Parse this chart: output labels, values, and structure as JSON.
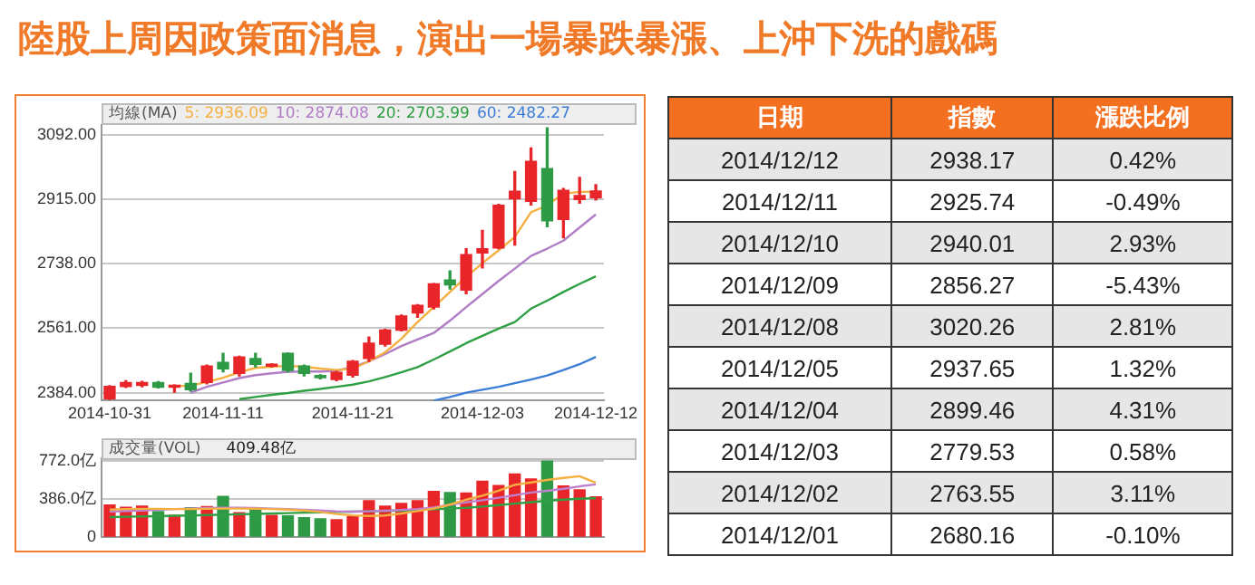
{
  "chart_data": [
    {
      "type": "candlestick",
      "title": "陸股上周因政策面消息，演出一場暴跌暴漲、上沖下洗的戲碼",
      "legend_title": "均線(MA)",
      "grid": "y",
      "categories": [
        "2014-10-31",
        null,
        null,
        null,
        null,
        null,
        null,
        "2014-11-11",
        null,
        null,
        null,
        null,
        null,
        null,
        null,
        "2014-11-21",
        null,
        null,
        null,
        null,
        null,
        null,
        null,
        "2014-12-03",
        null,
        null,
        null,
        null,
        null,
        null,
        "2014-12-12"
      ],
      "ohlc": [
        [
          2367,
          2403,
          2365,
          2401
        ],
        [
          2401,
          2417,
          2398,
          2412
        ],
        [
          2404,
          2415,
          2400,
          2412
        ],
        [
          2412,
          2414,
          2397,
          2399
        ],
        [
          2399,
          2405,
          2385,
          2404
        ],
        [
          2409,
          2437,
          2388,
          2392
        ],
        [
          2412,
          2460,
          2408,
          2457
        ],
        [
          2467,
          2492,
          2441,
          2449
        ],
        [
          2437,
          2484,
          2430,
          2482
        ],
        [
          2478,
          2492,
          2455,
          2462
        ],
        [
          2457,
          2463,
          2455,
          2462
        ],
        [
          2492,
          2493,
          2441,
          2445
        ],
        [
          2457,
          2460,
          2430,
          2437
        ],
        [
          2431,
          2433,
          2422,
          2425
        ],
        [
          2420,
          2442,
          2417,
          2440
        ],
        [
          2432,
          2472,
          2427,
          2470
        ],
        [
          2478,
          2537,
          2470,
          2520
        ],
        [
          2517,
          2558,
          2512,
          2556
        ],
        [
          2556,
          2597,
          2554,
          2595
        ],
        [
          2603,
          2626,
          2591,
          2624
        ],
        [
          2619,
          2684,
          2614,
          2683
        ],
        [
          2694,
          2719,
          2669,
          2680.16
        ],
        [
          2666,
          2780,
          2656,
          2763.55
        ],
        [
          2768,
          2830,
          2727,
          2779.53
        ],
        [
          2782,
          2902,
          2780,
          2899.46
        ],
        [
          2917,
          2992,
          2790,
          2937.65
        ],
        [
          2910,
          3057,
          2900,
          3020.26
        ],
        [
          3000,
          3112,
          2840,
          2856.27
        ],
        [
          2860,
          2945,
          2810,
          2940.01
        ],
        [
          2915,
          2976,
          2905,
          2925.74
        ],
        [
          2920,
          2956,
          2914,
          2938.17
        ]
      ],
      "colors": [
        "#e8262a",
        "#e8262a",
        "#e8262a",
        "#2e9a46",
        "#e8262a",
        "#2e9a46",
        "#e8262a",
        "#2e9a46",
        "#e8262a",
        "#2e9a46",
        "#e8262a",
        "#2e9a46",
        "#2e9a46",
        "#2e9a46",
        "#e8262a",
        "#e8262a",
        "#e8262a",
        "#e8262a",
        "#e8262a",
        "#e8262a",
        "#e8262a",
        "#2e9a46",
        "#e8262a",
        "#e8262a",
        "#e8262a",
        "#e8262a",
        "#e8262a",
        "#2e9a46",
        "#e8262a",
        "#e8262a",
        "#e8262a"
      ],
      "series": [
        {
          "type": "line",
          "name": "5: 2936.09",
          "color": "#f5b041",
          "values": [
            null,
            null,
            null,
            null,
            2402,
            2403,
            2413,
            2425,
            2440,
            2452,
            2455,
            2458,
            2455,
            2450,
            2446,
            2450,
            2470,
            2495,
            2532,
            2578,
            2619,
            2661,
            2702,
            2740,
            2775,
            2812,
            2880,
            2899,
            2931,
            2936,
            2936.09
          ]
        },
        {
          "type": "line",
          "name": "10: 2874.08",
          "color": "#b07cc6",
          "values": [
            null,
            null,
            null,
            null,
            null,
            2384,
            2400,
            2412,
            2424,
            2432,
            2437,
            2441,
            2442,
            2442,
            2444,
            2455,
            2470,
            2490,
            2512,
            2530,
            2548,
            2582,
            2619,
            2655,
            2691,
            2725,
            2760,
            2780,
            2802,
            2838,
            2874.08
          ]
        },
        {
          "type": "line",
          "name": "20: 2703.99",
          "color": "#2ea043",
          "values": [
            null,
            null,
            null,
            null,
            null,
            null,
            null,
            null,
            2366,
            2372,
            2378,
            2383,
            2389,
            2394,
            2400,
            2406,
            2415,
            2427,
            2440,
            2454,
            2475,
            2497,
            2520,
            2540,
            2560,
            2578,
            2615,
            2637,
            2661,
            2683,
            2703.99
          ]
        },
        {
          "type": "line",
          "name": "60: 2482.27",
          "color": "#3b7dd8",
          "values": [
            null,
            null,
            null,
            null,
            null,
            null,
            null,
            null,
            null,
            null,
            null,
            null,
            null,
            null,
            null,
            null,
            null,
            null,
            null,
            null,
            2362,
            2372,
            2384,
            2392,
            2400,
            2410,
            2420,
            2431,
            2446,
            2462,
            2482.27
          ]
        }
      ],
      "marker": "none",
      "ylim": [
        2362,
        3120
      ],
      "yticks": [
        {
          "value": 2384,
          "label": "2384.00"
        },
        {
          "value": 2561,
          "label": "2561.00"
        },
        {
          "value": 2738,
          "label": "2738.00"
        },
        {
          "value": 2915,
          "label": "2915.00"
        },
        {
          "value": 3092,
          "label": "3092.00"
        }
      ]
    },
    {
      "type": "bar",
      "legend_title": "成交量(VOL)",
      "annotations": [
        "409.48亿"
      ],
      "grid": "y",
      "tick_labels": "y",
      "marker": "none",
      "categories": [
        "2014-10-31",
        null,
        null,
        null,
        null,
        null,
        null,
        "2014-11-11",
        null,
        null,
        null,
        null,
        null,
        null,
        null,
        "2014-11-21",
        null,
        null,
        null,
        null,
        null,
        null,
        null,
        "2014-12-03",
        null,
        null,
        null,
        null,
        null,
        null,
        "2014-12-12"
      ],
      "series": [
        {
          "type": "bar",
          "values": [
            325,
            303,
            314,
            259,
            221,
            298,
            309,
            414,
            248,
            298,
            221,
            215,
            198,
            187,
            176,
            210,
            369,
            314,
            342,
            369,
            463,
            452,
            447,
            568,
            524,
            640,
            590,
            772,
            518,
            480,
            409.48
          ],
          "colors": [
            "#e8262a",
            "#e8262a",
            "#e8262a",
            "#2e9a46",
            "#e8262a",
            "#2e9a46",
            "#e8262a",
            "#2e9a46",
            "#e8262a",
            "#2e9a46",
            "#e8262a",
            "#2e9a46",
            "#2e9a46",
            "#2e9a46",
            "#e8262a",
            "#e8262a",
            "#e8262a",
            "#e8262a",
            "#e8262a",
            "#e8262a",
            "#e8262a",
            "#2e9a46",
            "#e8262a",
            "#e8262a",
            "#e8262a",
            "#e8262a",
            "#e8262a",
            "#2e9a46",
            "#e8262a",
            "#e8262a",
            "#e8262a"
          ]
        },
        {
          "type": "line",
          "color": "#f5b041",
          "values": [
            280,
            285,
            287,
            287,
            285,
            285,
            287,
            290,
            290,
            288,
            285,
            280,
            270,
            255,
            235,
            221,
            215,
            220,
            240,
            265,
            290,
            330,
            380,
            420,
            470,
            530,
            555,
            580,
            600,
            618,
            551
          ]
        },
        {
          "type": "line",
          "color": "#c080d0",
          "values": [
            259,
            265,
            270,
            278,
            285,
            290,
            295,
            298,
            298,
            295,
            290,
            285,
            278,
            270,
            262,
            259,
            262,
            268,
            276,
            285,
            300,
            330,
            353,
            375,
            400,
            425,
            452,
            470,
            490,
            515,
            535
          ]
        },
        {
          "type": "line",
          "color": "#2ea043",
          "values": [
            204,
            207,
            210,
            213,
            217,
            220,
            224,
            228,
            232,
            236,
            240,
            244,
            248,
            252,
            256,
            259,
            262,
            266,
            270,
            275,
            283,
            290,
            298,
            310,
            325,
            340,
            355,
            369,
            380,
            390,
            397
          ]
        }
      ],
      "ylim": [
        0,
        800
      ],
      "yticks": [
        0,
        {
          "value": 386,
          "label": "386.0亿"
        },
        {
          "value": 772,
          "label": "772.0亿"
        }
      ]
    },
    {
      "type": "other",
      "xlabel": "日期",
      "data_labels": true,
      "categories": [
        "2014/12/12",
        "2014/12/11",
        "2014/12/10",
        "2014/12/09",
        "2014/12/08",
        "2014/12/05",
        "2014/12/04",
        "2014/12/03",
        "2014/12/02",
        "2014/12/01"
      ],
      "series": [
        {
          "name": "指數",
          "values": [
            2938.17,
            2925.74,
            2940.01,
            2856.27,
            3020.26,
            2937.65,
            2899.46,
            2779.53,
            2763.55,
            2680.16
          ]
        },
        {
          "name": "漲跌比例",
          "values": [
            0.42,
            -0.49,
            2.93,
            -5.43,
            2.81,
            1.32,
            4.31,
            0.58,
            3.11,
            -0.1
          ],
          "value_labels": [
            "0.42%",
            "-0.49%",
            "2.93%",
            "-5.43%",
            "2.81%",
            "1.32%",
            "4.31%",
            "0.58%",
            "3.11%",
            "-0.10%"
          ]
        }
      ]
    }
  ]
}
